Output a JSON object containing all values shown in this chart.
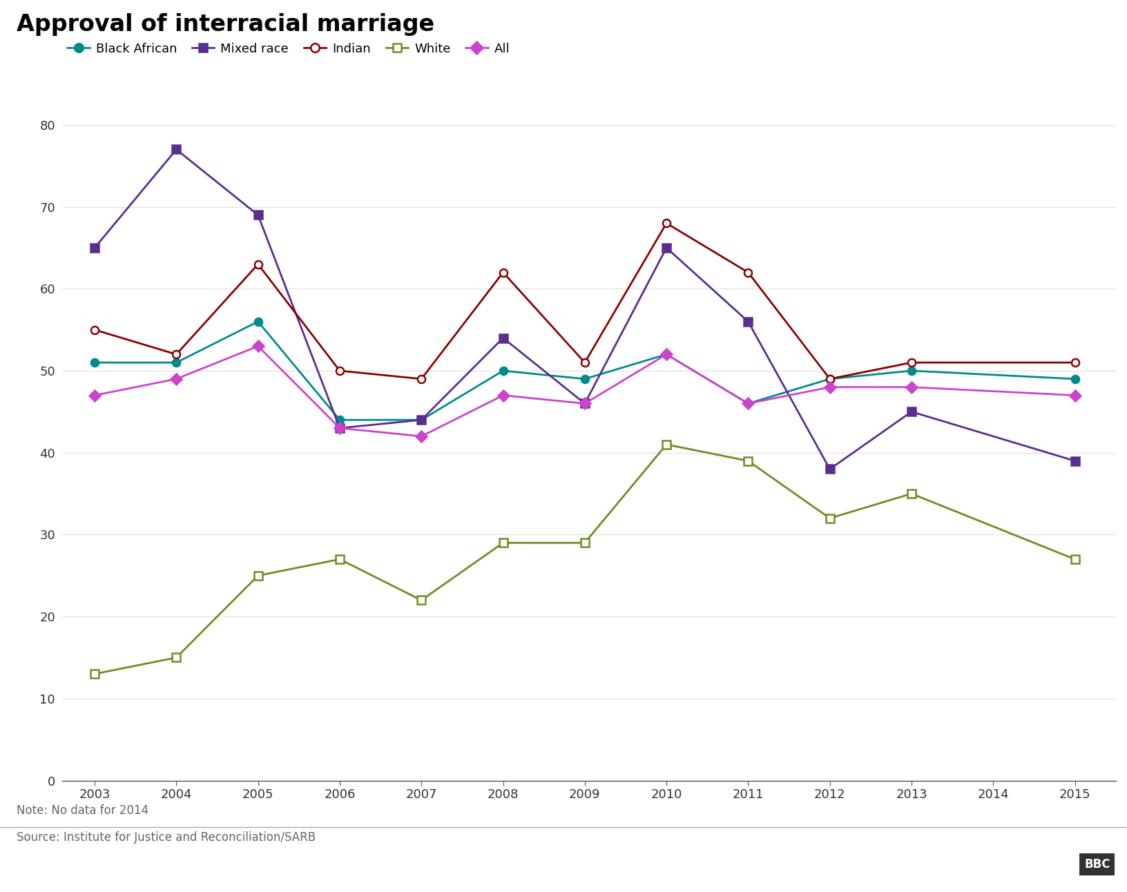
{
  "title": "Approval of interracial marriage",
  "years": [
    2003,
    2004,
    2005,
    2006,
    2007,
    2008,
    2009,
    2010,
    2011,
    2012,
    2013,
    2015
  ],
  "series": {
    "Black African": {
      "values": [
        51,
        51,
        56,
        44,
        44,
        50,
        49,
        52,
        46,
        49,
        50,
        49
      ],
      "color": "#008B8B",
      "marker": "o",
      "marker_filled": true
    },
    "Mixed race": {
      "values": [
        65,
        77,
        69,
        43,
        44,
        54,
        46,
        65,
        56,
        38,
        45,
        39
      ],
      "color": "#5B2D8E",
      "marker": "s",
      "marker_filled": true
    },
    "Indian": {
      "values": [
        55,
        52,
        63,
        50,
        49,
        62,
        51,
        68,
        62,
        49,
        51,
        51
      ],
      "color": "#8B0000",
      "marker": "o",
      "marker_filled": false
    },
    "White": {
      "values": [
        13,
        15,
        25,
        27,
        22,
        29,
        29,
        41,
        39,
        32,
        35,
        27
      ],
      "color": "#6B8E23",
      "marker": "s",
      "marker_filled": false
    },
    "All": {
      "values": [
        47,
        49,
        53,
        43,
        42,
        47,
        46,
        52,
        46,
        48,
        48,
        47
      ],
      "color": "#CC44CC",
      "marker": "D",
      "marker_filled": true
    }
  },
  "series_order": [
    "Black African",
    "Mixed race",
    "Indian",
    "White",
    "All"
  ],
  "ylim": [
    0,
    80
  ],
  "yticks": [
    0,
    10,
    20,
    30,
    40,
    50,
    60,
    70,
    80
  ],
  "note": "Note: No data for 2014",
  "source": "Source: Institute for Justice and Reconciliation/SARB",
  "background_color": "#ffffff"
}
